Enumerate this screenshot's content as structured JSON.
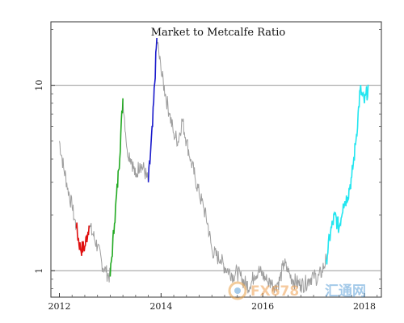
{
  "chart_data": {
    "type": "line",
    "title": "Market to Metcalfe Ratio",
    "xlabel": "",
    "ylabel": "",
    "y_scale": "log",
    "ylim": [
      0.72,
      22
    ],
    "xlim": [
      "2011-11",
      "2018-05"
    ],
    "x_tick_labels": [
      "2012",
      "2014",
      "2016",
      "2018"
    ],
    "y_tick_labels": [
      "1",
      "10"
    ],
    "reference_lines": [
      1,
      10
    ],
    "grid": false,
    "series_color": "#9e9e9e",
    "highlight_colors": [
      "#e01010",
      "#22aa22",
      "#1a1acc",
      "#22e6f0"
    ],
    "series": [
      {
        "points": [
          [
            "2012-01",
            5.0
          ],
          [
            "2012-02",
            3.6
          ],
          [
            "2012-03",
            2.8
          ],
          [
            "2012-04",
            2.2
          ],
          [
            "2012-05",
            1.7
          ],
          [
            "2012-06",
            1.3
          ],
          [
            "2012-07",
            1.35
          ],
          [
            "2012-08",
            1.75
          ],
          [
            "2012-09",
            1.55
          ],
          [
            "2012-10",
            1.35
          ],
          [
            "2012-11",
            1.1
          ],
          [
            "2012-12",
            0.98
          ],
          [
            "2013-01",
            0.93
          ],
          [
            "2013-02",
            1.8
          ],
          [
            "2013-03",
            3.5
          ],
          [
            "2013-04",
            8.5
          ],
          [
            "2013-05",
            4.5
          ],
          [
            "2013-06",
            4.0
          ],
          [
            "2013-07",
            3.2
          ],
          [
            "2013-08",
            3.8
          ],
          [
            "2013-09",
            3.5
          ],
          [
            "2013-10",
            3.0
          ],
          [
            "2013-11",
            6.0
          ],
          [
            "2013-12",
            18.0
          ],
          [
            "2014-01",
            12.0
          ],
          [
            "2014-02",
            9.0
          ],
          [
            "2014-03",
            7.0
          ],
          [
            "2014-04",
            5.5
          ],
          [
            "2014-05",
            5.0
          ],
          [
            "2014-06",
            6.5
          ],
          [
            "2014-07",
            5.0
          ],
          [
            "2014-08",
            4.0
          ],
          [
            "2014-09",
            3.2
          ],
          [
            "2014-10",
            2.6
          ],
          [
            "2014-11",
            2.2
          ],
          [
            "2014-12",
            1.8
          ],
          [
            "2015-01",
            1.3
          ],
          [
            "2015-02",
            1.2
          ],
          [
            "2015-03",
            1.15
          ],
          [
            "2015-04",
            1.05
          ],
          [
            "2015-05",
            1.0
          ],
          [
            "2015-06",
            0.95
          ],
          [
            "2015-07",
            0.98
          ],
          [
            "2015-08",
            0.9
          ],
          [
            "2015-09",
            0.85
          ],
          [
            "2015-10",
            0.82
          ],
          [
            "2015-11",
            0.95
          ],
          [
            "2015-12",
            1.0
          ],
          [
            "2016-01",
            0.95
          ],
          [
            "2016-02",
            0.88
          ],
          [
            "2016-03",
            0.85
          ],
          [
            "2016-04",
            0.84
          ],
          [
            "2016-05",
            0.88
          ],
          [
            "2016-06",
            1.1
          ],
          [
            "2016-07",
            0.98
          ],
          [
            "2016-08",
            0.9
          ],
          [
            "2016-09",
            0.86
          ],
          [
            "2016-10",
            0.84
          ],
          [
            "2016-11",
            0.85
          ],
          [
            "2016-12",
            0.9
          ],
          [
            "2017-01",
            0.95
          ],
          [
            "2017-02",
            0.9
          ],
          [
            "2017-03",
            1.0
          ],
          [
            "2017-04",
            1.15
          ],
          [
            "2017-05",
            1.6
          ],
          [
            "2017-06",
            2.0
          ],
          [
            "2017-07",
            1.7
          ],
          [
            "2017-08",
            2.3
          ],
          [
            "2017-09",
            2.5
          ],
          [
            "2017-10",
            3.2
          ],
          [
            "2017-11",
            5.0
          ],
          [
            "2017-12",
            9.5
          ],
          [
            "2018-01",
            8.0
          ],
          [
            "2018-02",
            10.0
          ]
        ],
        "highlights": [
          {
            "color_index": 0,
            "from": "2012-05",
            "to": "2012-08"
          },
          {
            "color_index": 1,
            "from": "2013-01",
            "to": "2013-04"
          },
          {
            "color_index": 2,
            "from": "2013-10",
            "to": "2013-12"
          },
          {
            "color_index": 3,
            "from": "2017-04",
            "to": "2018-02"
          }
        ]
      }
    ]
  },
  "watermark": {
    "brand": "FX678",
    "cn": "汇通网"
  }
}
